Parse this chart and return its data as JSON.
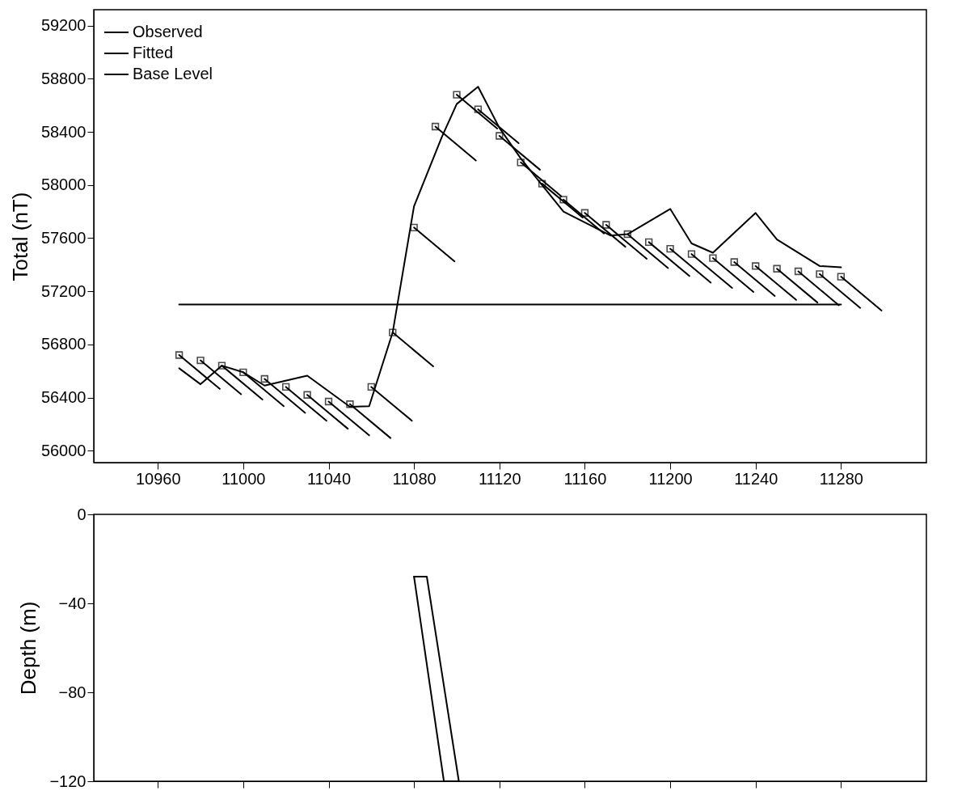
{
  "chart_data": [
    {
      "type": "line",
      "ylabel": "Total (nT)",
      "xlim": [
        10930,
        11320
      ],
      "ylim": [
        55910,
        59320
      ],
      "xticks": [
        10960,
        11000,
        11040,
        11080,
        11120,
        11160,
        11200,
        11240,
        11280
      ],
      "yticks": [
        56000,
        56400,
        56800,
        57200,
        57600,
        58000,
        58400,
        58800,
        59200
      ],
      "grid": false,
      "legend": "top left",
      "series": [
        {
          "name": "Observed",
          "color": "#000000",
          "x": [
            10970,
            10980,
            10990,
            11000,
            11010,
            11030,
            11050,
            11059,
            11070,
            11080,
            11093,
            11100,
            11110,
            11120,
            11130,
            11140,
            11150,
            11172,
            11180,
            11200,
            11210,
            11220,
            11240,
            11250,
            11270,
            11280
          ],
          "values": [
            56620,
            56500,
            56640,
            56590,
            56490,
            56565,
            56330,
            56335,
            56890,
            57840,
            58360,
            58610,
            58740,
            58430,
            58200,
            58000,
            57800,
            57620,
            57630,
            57820,
            57560,
            57490,
            57790,
            57590,
            57390,
            57380
          ]
        },
        {
          "type": "scatter",
          "color": "#000000",
          "marker": "square",
          "x": [
            10970,
            10980,
            10990,
            11000,
            11010,
            11020,
            11030,
            11040,
            11050,
            11060,
            11070,
            11080,
            11090,
            11100,
            11110,
            11120,
            11130,
            11140,
            11150,
            11160,
            11170,
            11180,
            11190,
            11200,
            11210,
            11220,
            11230,
            11240,
            11250,
            11260,
            11270,
            11280
          ],
          "values": [
            56720,
            56680,
            56640,
            56590,
            56540,
            56480,
            56420,
            56370,
            56350,
            56480,
            56890,
            57680,
            58440,
            58680,
            58570,
            58370,
            58170,
            58010,
            57890,
            57790,
            57700,
            57630,
            57570,
            57520,
            57480,
            57450,
            57420,
            57390,
            57370,
            57350,
            57330,
            57310
          ]
        },
        {
          "name": "Fitted",
          "color": "#000000",
          "x": [
            10970,
            10989,
            null,
            10980,
            10999,
            null,
            10990,
            11009,
            null,
            11000,
            11019,
            null,
            11010,
            11029,
            null,
            11020,
            11039,
            null,
            11030,
            11049,
            null,
            11040,
            11059,
            null,
            11050,
            11069,
            null,
            11060,
            11079,
            null,
            11070,
            11089,
            null,
            11080,
            11099,
            null,
            11090,
            11109,
            null,
            11100,
            11119,
            null,
            11110,
            11129,
            null,
            11120,
            11139,
            null,
            11130,
            11149,
            null,
            11140,
            11159,
            null,
            11150,
            11169,
            null,
            11160,
            11179,
            null,
            11170,
            11189,
            null,
            11180,
            11199,
            null,
            11190,
            11209,
            null,
            11200,
            11219,
            null,
            11210,
            11229,
            null,
            11220,
            11239,
            null,
            11230,
            11249,
            null,
            11240,
            11259,
            null,
            11250,
            11269,
            null,
            11260,
            11279,
            null,
            11270,
            11289,
            null,
            11280,
            11299
          ],
          "values": [
            56720,
            56465,
            null,
            56680,
            56425,
            null,
            56640,
            56385,
            null,
            56590,
            56335,
            null,
            56540,
            56285,
            null,
            56480,
            56225,
            null,
            56420,
            56165,
            null,
            56370,
            56115,
            null,
            56350,
            56095,
            null,
            56480,
            56225,
            null,
            56890,
            56635,
            null,
            57680,
            57425,
            null,
            58440,
            58185,
            null,
            58680,
            58425,
            null,
            58570,
            58315,
            null,
            58370,
            58115,
            null,
            58170,
            57915,
            null,
            58010,
            57755,
            null,
            57890,
            57635,
            null,
            57790,
            57535,
            null,
            57700,
            57445,
            null,
            57630,
            57375,
            null,
            57570,
            57315,
            null,
            57520,
            57265,
            null,
            57480,
            57225,
            null,
            57450,
            57195,
            null,
            57420,
            57165,
            null,
            57390,
            57135,
            null,
            57370,
            57115,
            null,
            57350,
            57095,
            null,
            57330,
            57075,
            null,
            57310,
            57055
          ]
        },
        {
          "name": "Base Level",
          "color": "#000000",
          "x": [
            10970,
            11280
          ],
          "values": [
            57100,
            57100
          ]
        }
      ]
    },
    {
      "type": "line",
      "ylabel": "Depth (m)",
      "xlim": [
        10930,
        11320
      ],
      "ylim": [
        -120,
        0
      ],
      "xticks": [
        10960,
        11000,
        11040,
        11080,
        11120,
        11160,
        11200,
        11240,
        11280
      ],
      "yticks": [
        0,
        -40,
        -80,
        -120
      ],
      "grid": false,
      "tick_labels": "y",
      "series": [
        {
          "color": "#000000",
          "x": [
            11080,
            11086,
            11101
          ],
          "values": [
            -28,
            -28,
            -120
          ]
        },
        {
          "color": "#000000",
          "x": [
            11080,
            11094,
            11101
          ],
          "values": [
            -28,
            -120,
            -120
          ]
        }
      ]
    }
  ]
}
